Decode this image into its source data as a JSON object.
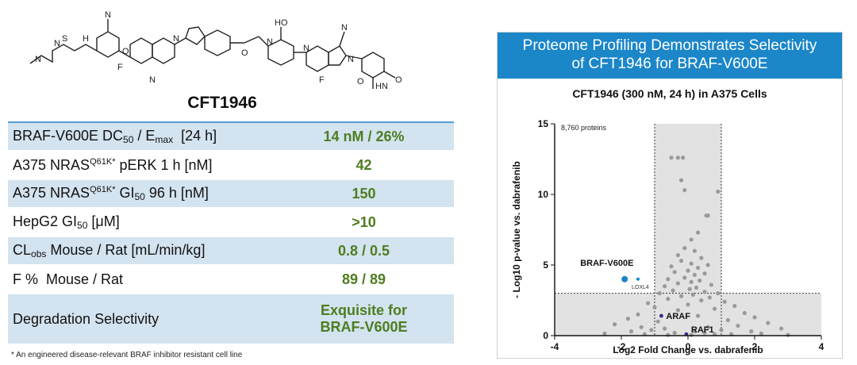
{
  "compound": {
    "name": "CFT1946"
  },
  "table": {
    "rows": [
      {
        "label_html": "BRAF-V600E DC<span class=\"sub\">50</span> / E<span class=\"sub\">max</span>&nbsp; [24 h]",
        "value": "14 nM / 26%",
        "shaded": true
      },
      {
        "label_html": "A375 NRAS<span class=\"sup\">Q61K</span><span class=\"sup\">*</span> pERK 1 h [nM]",
        "value": "42",
        "shaded": false
      },
      {
        "label_html": "A375 NRAS<span class=\"sup\">Q61K</span><span class=\"sup\">*</span> GI<span class=\"sub\">50</span> 96 h [nM]",
        "value": "150",
        "shaded": true
      },
      {
        "label_html": "HepG2 GI<span class=\"sub\">50</span> [μM]",
        "value": ">10",
        "shaded": false
      },
      {
        "label_html": "CL<span class=\"sub\">obs</span> Mouse / Rat [mL/min/kg]",
        "value": "0.8 / 0.5",
        "shaded": true
      },
      {
        "label_html": "F %&nbsp; Mouse / Rat",
        "value": "89 / 89",
        "shaded": false
      },
      {
        "label_html": "Degradation Selectivity",
        "value_lines": [
          "Exquisite for",
          "BRAF-V600E"
        ],
        "shaded": true
      }
    ]
  },
  "footnote": "* An engineered disease-relevant BRAF inhibitor resistant cell line",
  "panel": {
    "title_lines": [
      "Proteome Profiling Demonstrates Selectivity",
      "of CFT1946 for BRAF-V600E"
    ]
  },
  "chart_data": {
    "type": "scatter",
    "title": "CFT1946 (300 nM, 24 h) in A375 Cells",
    "xlabel": "Log2 Fold Change vs. dabrafenib",
    "ylabel": "- Log10 p-value vs. dabrafenib",
    "xlim": [
      -4,
      4
    ],
    "ylim": [
      0,
      15
    ],
    "xticks": [
      -4,
      -2,
      0,
      2,
      4
    ],
    "yticks": [
      0,
      5,
      10,
      15
    ],
    "annotation": "8,760 proteins",
    "fold_change_thresholds": [
      -1,
      1
    ],
    "pvalue_threshold": 3,
    "highlighted": [
      {
        "name": "BRAF-V600E",
        "x": -1.9,
        "y": 4.0,
        "color": "#1b86c8"
      },
      {
        "name": "LOXL4",
        "x": -1.5,
        "y": 4.0,
        "color": "#1b86c8"
      },
      {
        "name": "ARAF",
        "x": -0.8,
        "y": 1.4,
        "color": "#2c2c8c"
      },
      {
        "name": "RAF1",
        "x": -0.05,
        "y": 0.1,
        "color": "#2c2c8c"
      }
    ],
    "grey_points": [
      [
        -0.3,
        12.6
      ],
      [
        -0.15,
        12.6
      ],
      [
        -0.5,
        12.6
      ],
      [
        -0.1,
        10.3
      ],
      [
        0.6,
        8.5
      ],
      [
        0.55,
        8.5
      ],
      [
        -0.2,
        11.0
      ],
      [
        0.9,
        10.2
      ],
      [
        0.3,
        7.3
      ],
      [
        0.1,
        6.8
      ],
      [
        -0.1,
        6.2
      ],
      [
        0.2,
        6.0
      ],
      [
        -0.3,
        5.7
      ],
      [
        0.4,
        5.5
      ],
      [
        -0.2,
        5.3
      ],
      [
        0.1,
        5.1
      ],
      [
        0.6,
        5.0
      ],
      [
        -0.5,
        4.9
      ],
      [
        0.3,
        4.8
      ],
      [
        0.0,
        4.6
      ],
      [
        -0.4,
        4.5
      ],
      [
        0.5,
        4.4
      ],
      [
        0.2,
        4.3
      ],
      [
        -0.1,
        4.1
      ],
      [
        -0.6,
        4.0
      ],
      [
        0.35,
        3.9
      ],
      [
        0.1,
        3.8
      ],
      [
        -0.3,
        3.7
      ],
      [
        0.7,
        3.6
      ],
      [
        -0.7,
        3.5
      ],
      [
        0.25,
        3.4
      ],
      [
        0.05,
        3.3
      ],
      [
        -0.45,
        3.2
      ],
      [
        0.5,
        3.1
      ],
      [
        0.9,
        3.0
      ],
      [
        -0.85,
        3.0
      ],
      [
        0.15,
        2.9
      ],
      [
        -0.2,
        2.8
      ],
      [
        0.65,
        2.7
      ],
      [
        -0.6,
        2.6
      ],
      [
        0.4,
        2.5
      ],
      [
        1.1,
        2.4
      ],
      [
        -1.2,
        2.3
      ],
      [
        0.0,
        2.2
      ],
      [
        1.4,
        2.1
      ],
      [
        -1.0,
        2.0
      ],
      [
        0.8,
        1.9
      ],
      [
        -0.3,
        1.8
      ],
      [
        1.7,
        1.6
      ],
      [
        -1.5,
        1.5
      ],
      [
        0.3,
        1.4
      ],
      [
        2.0,
        1.3
      ],
      [
        -1.8,
        1.2
      ],
      [
        1.2,
        1.1
      ],
      [
        -0.9,
        1.0
      ],
      [
        2.4,
        0.9
      ],
      [
        -2.2,
        0.8
      ],
      [
        1.5,
        0.7
      ],
      [
        -1.4,
        0.6
      ],
      [
        0.6,
        0.6
      ],
      [
        2.8,
        0.5
      ],
      [
        -0.7,
        0.5
      ],
      [
        1.0,
        0.4
      ],
      [
        -1.1,
        0.4
      ],
      [
        0.2,
        0.3
      ],
      [
        1.9,
        0.3
      ],
      [
        -1.7,
        0.3
      ],
      [
        0.5,
        0.2
      ],
      [
        -0.4,
        0.2
      ],
      [
        2.2,
        0.15
      ],
      [
        -2.5,
        0.15
      ],
      [
        1.3,
        0.1
      ],
      [
        -1.3,
        0.1
      ],
      [
        0.8,
        0.1
      ],
      [
        -0.6,
        0.05
      ],
      [
        0.1,
        0.05
      ],
      [
        3.0,
        0.05
      ]
    ]
  }
}
